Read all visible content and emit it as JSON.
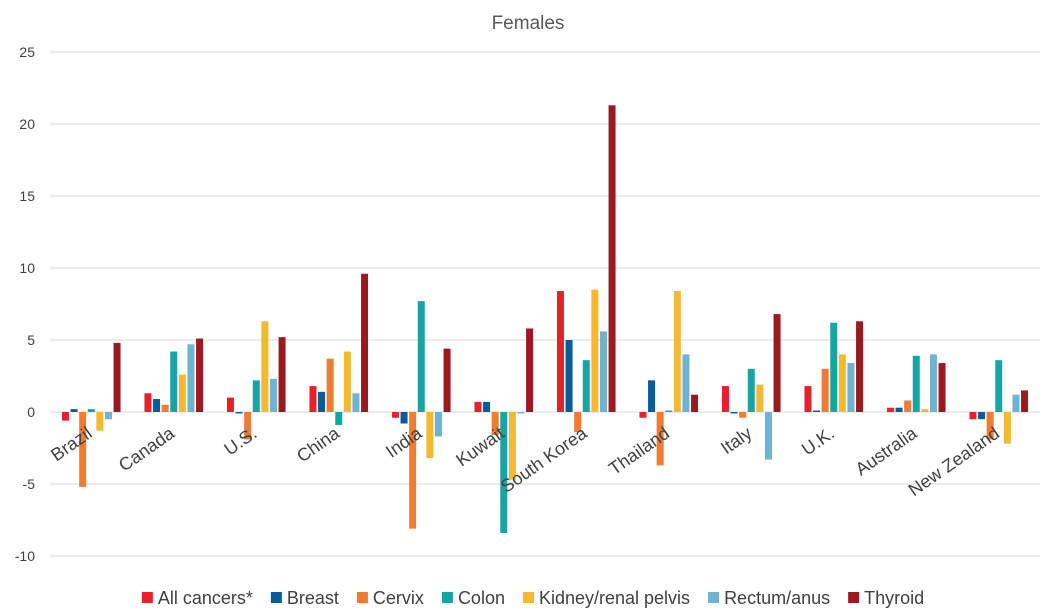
{
  "chart_data": {
    "type": "bar",
    "title": "Females",
    "xlabel": "",
    "ylabel": "",
    "ylim": [
      -10,
      25
    ],
    "yticks": [
      "-10",
      "-5",
      "0",
      "5",
      "10",
      "15",
      "20",
      "25"
    ],
    "grid": true,
    "legend_position": "bottom",
    "categories": [
      "Brazil",
      "Canada",
      "U.S.",
      "China",
      "India",
      "Kuwait",
      "South Korea",
      "Thailand",
      "Italy",
      "U.K.",
      "Australia",
      "New Zealand"
    ],
    "series": [
      {
        "name": "All cancers*",
        "color": "#e8202a",
        "values": [
          -0.6,
          1.3,
          1.0,
          1.8,
          -0.4,
          0.7,
          8.4,
          -0.4,
          1.8,
          1.8,
          0.3,
          -0.5
        ]
      },
      {
        "name": "Breast",
        "color": "#0a5a9c",
        "values": [
          0.2,
          0.9,
          -0.1,
          1.4,
          -0.8,
          0.7,
          5.0,
          2.2,
          -0.1,
          0.1,
          0.3,
          -0.5
        ]
      },
      {
        "name": "Cervix",
        "color": "#ef7d31",
        "values": [
          -5.2,
          0.5,
          -1.9,
          3.7,
          -8.1,
          -1.6,
          -1.4,
          -3.7,
          -0.4,
          3.0,
          0.8,
          -1.9
        ]
      },
      {
        "name": "Colon",
        "color": "#16a5a5",
        "values": [
          0.2,
          4.2,
          2.2,
          -0.9,
          7.7,
          -8.4,
          3.6,
          0.1,
          3.0,
          6.2,
          3.9,
          3.6
        ]
      },
      {
        "name": "Kidney/renal pelvis",
        "color": "#f5b931",
        "values": [
          -1.3,
          2.6,
          6.3,
          4.2,
          -3.2,
          -4.7,
          8.5,
          8.4,
          1.9,
          4.0,
          0.2,
          -2.2
        ]
      },
      {
        "name": "Rectum/anus",
        "color": "#6fb2d1",
        "values": [
          -0.5,
          4.7,
          2.3,
          1.3,
          -1.7,
          -0.1,
          5.6,
          4.0,
          -3.3,
          3.4,
          4.0,
          1.2
        ]
      },
      {
        "name": "Thyroid",
        "color": "#9b1a1f",
        "values": [
          4.8,
          5.1,
          5.2,
          9.6,
          4.4,
          5.8,
          21.3,
          1.2,
          6.8,
          6.3,
          3.4,
          1.5
        ]
      }
    ]
  }
}
